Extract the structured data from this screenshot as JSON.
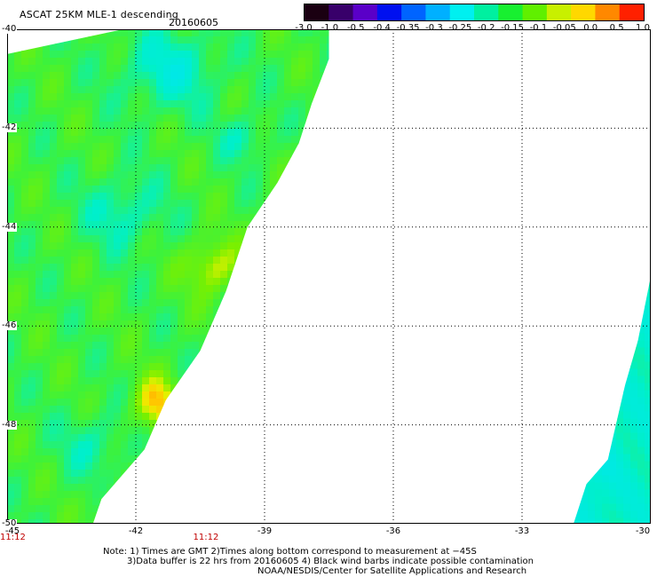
{
  "header": {
    "title": "ASCAT 25KM MLE-1 descending",
    "date": "20160605"
  },
  "colorbar": {
    "labels": [
      "-3.0",
      "-1.0",
      "-0.5",
      "-0.4",
      "-0.35",
      "-0.3",
      "-0.25",
      "-0.2",
      "-0.15",
      "-0.1",
      "-0.05",
      "0.0",
      "0.5",
      "1.0"
    ],
    "colors": [
      "#1a0011",
      "#38006a",
      "#5a00c8",
      "#0010f0",
      "#0064ff",
      "#00b0ff",
      "#00f0f0",
      "#00f0a0",
      "#18f030",
      "#60f000",
      "#c8f000",
      "#ffd800",
      "#ff8800",
      "#ff2000"
    ]
  },
  "axes": {
    "lat_labels": [
      "-40",
      "-42",
      "-44",
      "-46",
      "-48",
      "-50"
    ],
    "lon_labels": [
      "-45",
      "-42",
      "-39",
      "-36",
      "-33",
      "-30"
    ],
    "lat_range": [
      -50,
      -40
    ],
    "lon_range": [
      -45,
      -30
    ],
    "time_labels": [
      {
        "text": "11:12",
        "lon": -45
      },
      {
        "text": "11:12",
        "lon": -40.5
      }
    ]
  },
  "notes": {
    "line1": "Note: 1) Times are GMT 2)Times along bottom correspond to measurement at −45S",
    "line2": "3)Data buffer is 22 hrs from 20160605 4) Black wind barbs indicate possible contamination",
    "line3": "NOAA/NESDIS/Center for Satellite Applications and Research"
  },
  "swaths": [
    {
      "name": "western-swath",
      "edge": [
        [
          -42.3,
          -40
        ],
        [
          -37.5,
          -40
        ],
        [
          -37.5,
          -40.6
        ],
        [
          -37.9,
          -41.5
        ],
        [
          -38.2,
          -42.3
        ],
        [
          -38.7,
          -43.1
        ],
        [
          -39.4,
          -44.0
        ],
        [
          -39.9,
          -45.3
        ],
        [
          -40.5,
          -46.5
        ],
        [
          -41.3,
          -47.5
        ],
        [
          -41.8,
          -48.5
        ],
        [
          -42.8,
          -49.5
        ],
        [
          -43.0,
          -50
        ],
        [
          -45,
          -50
        ],
        [
          -45,
          -40.5
        ]
      ],
      "dominant_color": "#3cf23c"
    },
    {
      "name": "eastern-swath",
      "edge": [
        [
          -30,
          -45.0
        ],
        [
          -30.3,
          -46.3
        ],
        [
          -30.6,
          -47.2
        ],
        [
          -31.0,
          -48.7
        ],
        [
          -31.5,
          -49.2
        ],
        [
          -31.8,
          -50
        ],
        [
          -30,
          -50
        ]
      ],
      "dominant_color": "#12f0d0"
    }
  ]
}
